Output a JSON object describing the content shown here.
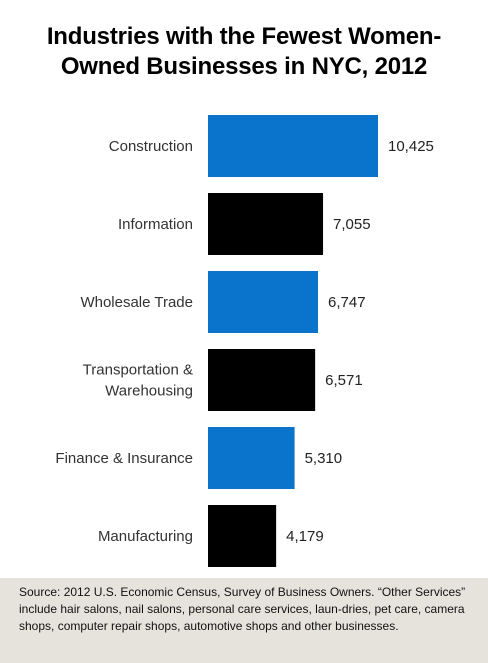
{
  "colors": {
    "blue": "#0a74cc",
    "black": "#000000",
    "source_background": "#e6e3dc"
  },
  "chart_data": {
    "type": "bar",
    "orientation": "horizontal",
    "title_line1": "Industries with the Fewest Women-",
    "title_line2": "Owned Businesses in NYC, 2012",
    "xlabel": "",
    "ylabel": "",
    "xlim": [
      0,
      10425
    ],
    "grid": false,
    "categories": [
      "Construction",
      "Information",
      "Wholesale Trade",
      "Transportation & Warehousing",
      "Finance & Insurance",
      "Manufacturing"
    ],
    "category_lines": [
      [
        "Construction"
      ],
      [
        "Information"
      ],
      [
        "Wholesale Trade"
      ],
      [
        "Transportation &",
        "Warehousing"
      ],
      [
        "Finance & Insurance"
      ],
      [
        "Manufacturing"
      ]
    ],
    "values": [
      10425,
      7055,
      6747,
      6571,
      5310,
      4179
    ],
    "value_labels": [
      "10,425",
      "7,055",
      "6,747",
      "6,571",
      "5,310",
      "4,179"
    ],
    "bar_colors": [
      "#0a74cc",
      "#000000",
      "#0a74cc",
      "#000000",
      "#0a74cc",
      "#000000"
    ]
  },
  "source_note": "Source: 2012 U.S. Economic Census, Survey of Business Owners. “Other Services” include hair salons, nail salons, personal care services, laun-dries, pet care, camera shops, computer repair shops, automotive shops and other businesses."
}
